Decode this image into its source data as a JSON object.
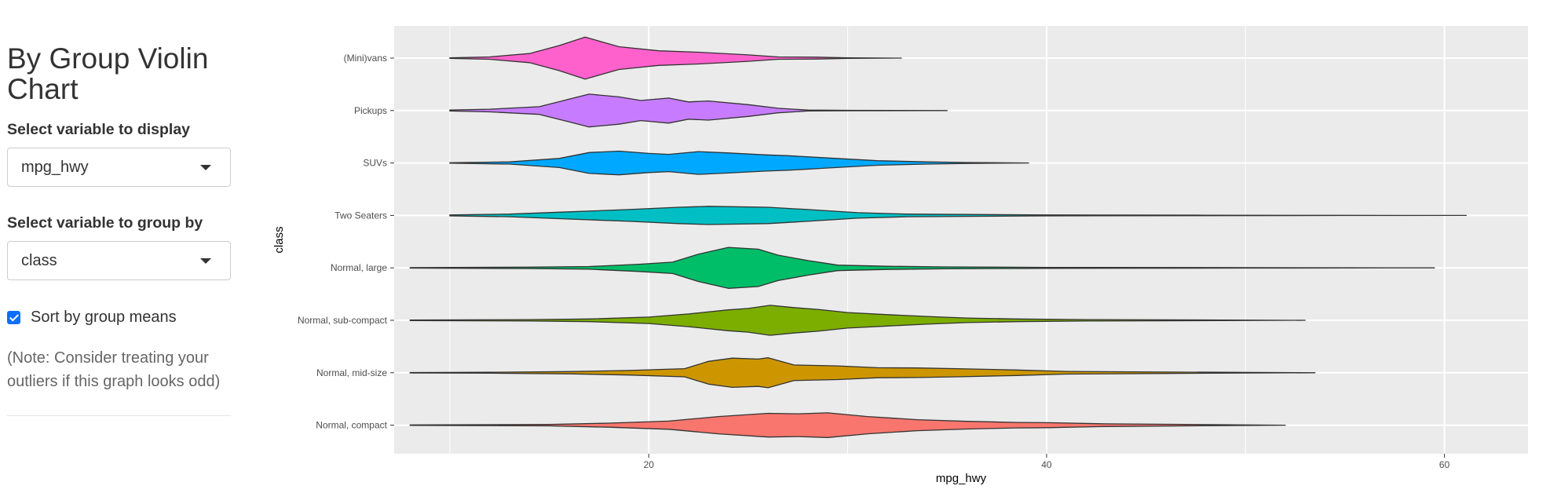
{
  "sidebar": {
    "title": "By Group Violin Chart",
    "variable_label": "Select variable to display",
    "variable_value": "mpg_hwy",
    "group_label": "Select variable to group by",
    "group_value": "class",
    "sort_label": "Sort by group means",
    "sort_checked": true,
    "note": "(Note: Consider treating your outliers if this graph looks odd)"
  },
  "chart_data": {
    "type": "violin",
    "title": "",
    "xlabel": "mpg_hwy",
    "ylabel": "class",
    "xlim": [
      7.2,
      64.2
    ],
    "xticks": [
      20,
      40,
      60
    ],
    "grid": true,
    "categories": [
      "(Mini)vans",
      "Pickups",
      "SUVs",
      "Two Seaters",
      "Normal, large",
      "Normal, sub-compact",
      "Normal, mid-size",
      "Normal, compact"
    ],
    "series": [
      {
        "category": "(Mini)vans",
        "color": "#FF61CC",
        "min": 10,
        "max": 32.7,
        "density": [
          [
            10,
            0.01
          ],
          [
            12,
            0.05
          ],
          [
            14,
            0.2
          ],
          [
            15.5,
            0.55
          ],
          [
            16.8,
            0.92
          ],
          [
            18.5,
            0.5
          ],
          [
            20.5,
            0.32
          ],
          [
            22.5,
            0.26
          ],
          [
            25,
            0.14
          ],
          [
            26.5,
            0.05
          ],
          [
            28.5,
            0.04
          ],
          [
            30,
            0.01
          ],
          [
            32.7,
            0
          ]
        ]
      },
      {
        "category": "Pickups",
        "color": "#C77CFF",
        "min": 10,
        "max": 35,
        "density": [
          [
            10,
            0.02
          ],
          [
            12,
            0.06
          ],
          [
            14.5,
            0.17
          ],
          [
            16,
            0.5
          ],
          [
            17,
            0.72
          ],
          [
            18.5,
            0.6
          ],
          [
            19.6,
            0.44
          ],
          [
            21,
            0.55
          ],
          [
            22,
            0.38
          ],
          [
            23,
            0.42
          ],
          [
            25,
            0.26
          ],
          [
            26.5,
            0.1
          ],
          [
            28,
            0.02
          ],
          [
            30,
            0.01
          ],
          [
            35,
            0
          ]
        ]
      },
      {
        "category": "SUVs",
        "color": "#00A9FF",
        "min": 10,
        "max": 39.1,
        "density": [
          [
            10,
            0.01
          ],
          [
            13,
            0.05
          ],
          [
            15.5,
            0.2
          ],
          [
            17,
            0.46
          ],
          [
            18.5,
            0.52
          ],
          [
            20,
            0.42
          ],
          [
            21,
            0.38
          ],
          [
            22.5,
            0.5
          ],
          [
            24,
            0.44
          ],
          [
            25.8,
            0.36
          ],
          [
            27,
            0.32
          ],
          [
            29,
            0.22
          ],
          [
            31.5,
            0.1
          ],
          [
            34,
            0.05
          ],
          [
            36,
            0.02
          ],
          [
            39.1,
            0
          ]
        ]
      },
      {
        "category": "Two Seaters",
        "color": "#00BFC4",
        "min": 10,
        "max": 61.1,
        "density": [
          [
            10,
            0.02
          ],
          [
            13,
            0.06
          ],
          [
            16,
            0.16
          ],
          [
            19,
            0.26
          ],
          [
            21.5,
            0.36
          ],
          [
            23,
            0.4
          ],
          [
            26,
            0.36
          ],
          [
            28,
            0.26
          ],
          [
            30.5,
            0.12
          ],
          [
            33,
            0.06
          ],
          [
            36,
            0.04
          ],
          [
            40,
            0.02
          ],
          [
            48,
            0.01
          ],
          [
            55,
            0.005
          ],
          [
            61.1,
            0
          ]
        ]
      },
      {
        "category": "Normal, large",
        "color": "#00BE67",
        "min": 8,
        "max": 59.5,
        "density": [
          [
            8,
            0.01
          ],
          [
            14,
            0.03
          ],
          [
            17,
            0.06
          ],
          [
            19.5,
            0.16
          ],
          [
            21.2,
            0.25
          ],
          [
            22.5,
            0.6
          ],
          [
            24,
            0.9
          ],
          [
            25.5,
            0.82
          ],
          [
            26.5,
            0.56
          ],
          [
            28,
            0.32
          ],
          [
            29.5,
            0.12
          ],
          [
            32,
            0.07
          ],
          [
            35,
            0.04
          ],
          [
            40,
            0.02
          ],
          [
            50,
            0.01
          ],
          [
            59.5,
            0
          ]
        ]
      },
      {
        "category": "Normal, sub-compact",
        "color": "#7CAE00",
        "min": 8,
        "max": 53,
        "density": [
          [
            8,
            0.01
          ],
          [
            14,
            0.03
          ],
          [
            17,
            0.06
          ],
          [
            20,
            0.14
          ],
          [
            22,
            0.28
          ],
          [
            24,
            0.46
          ],
          [
            25,
            0.52
          ],
          [
            26.1,
            0.66
          ],
          [
            27.3,
            0.56
          ],
          [
            28.5,
            0.48
          ],
          [
            30,
            0.34
          ],
          [
            32,
            0.25
          ],
          [
            34,
            0.17
          ],
          [
            36,
            0.1
          ],
          [
            38.5,
            0.06
          ],
          [
            42,
            0.03
          ],
          [
            46,
            0.02
          ],
          [
            53,
            0
          ]
        ]
      },
      {
        "category": "Normal, mid-size",
        "color": "#CD9600",
        "min": 8,
        "max": 53.5,
        "density": [
          [
            8,
            0.01
          ],
          [
            12,
            0.02
          ],
          [
            16,
            0.05
          ],
          [
            19,
            0.1
          ],
          [
            21.8,
            0.18
          ],
          [
            23,
            0.5
          ],
          [
            24.2,
            0.64
          ],
          [
            25.5,
            0.6
          ],
          [
            26,
            0.66
          ],
          [
            27.3,
            0.34
          ],
          [
            29.5,
            0.3
          ],
          [
            31.5,
            0.22
          ],
          [
            33.5,
            0.21
          ],
          [
            35.5,
            0.18
          ],
          [
            38.5,
            0.12
          ],
          [
            41,
            0.06
          ],
          [
            46,
            0.03
          ],
          [
            53.5,
            0
          ]
        ]
      },
      {
        "category": "Normal, compact",
        "color": "#F8766D",
        "min": 8,
        "max": 52,
        "density": [
          [
            8,
            0.01
          ],
          [
            15,
            0.03
          ],
          [
            18,
            0.09
          ],
          [
            21,
            0.18
          ],
          [
            23.5,
            0.38
          ],
          [
            26,
            0.52
          ],
          [
            27.5,
            0.5
          ],
          [
            29,
            0.54
          ],
          [
            31,
            0.38
          ],
          [
            33.5,
            0.24
          ],
          [
            36,
            0.17
          ],
          [
            38.5,
            0.12
          ],
          [
            40,
            0.11
          ],
          [
            43,
            0.06
          ],
          [
            47,
            0.03
          ],
          [
            52,
            0
          ]
        ]
      }
    ]
  }
}
